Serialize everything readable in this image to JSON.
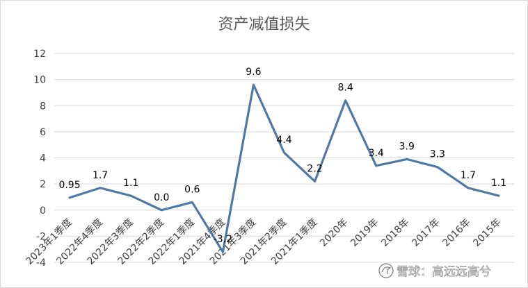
{
  "chart_data": {
    "type": "line",
    "title": "资产减值损失",
    "xlabel": "",
    "ylabel": "",
    "categories": [
      "2023年1季度",
      "2022年4季度",
      "2022年3季度",
      "2022年2季度",
      "2022年1季度",
      "2021年4季度",
      "2021年3季度",
      "2021年2季度",
      "2021年1季度",
      "2020年",
      "2019年",
      "2018年",
      "2017年",
      "2016年",
      "2015年"
    ],
    "series": [
      {
        "values": [
          0.95,
          1.7,
          1.1,
          0.0,
          0.6,
          -3.2,
          9.6,
          4.4,
          2.2,
          8.4,
          3.4,
          3.9,
          3.3,
          1.7,
          1.1
        ],
        "labels": [
          "0.95",
          "1.7",
          "1.1",
          "0.0",
          "0.6",
          "-3.2",
          "9.6",
          "4.4",
          "2.2",
          "8.4",
          "3.4",
          "3.9",
          "3.3",
          "1.7",
          "1.1"
        ],
        "color": "#4e79a7"
      }
    ],
    "yticks": [
      "12",
      "10",
      "8",
      "6",
      "4",
      "2",
      "0",
      "-2",
      "-4"
    ],
    "ylim": [
      -4,
      12
    ],
    "grid": true,
    "legend": "none"
  },
  "watermark": {
    "text": "雪球：高远远高兮",
    "icon": "snowball-logo-icon"
  }
}
